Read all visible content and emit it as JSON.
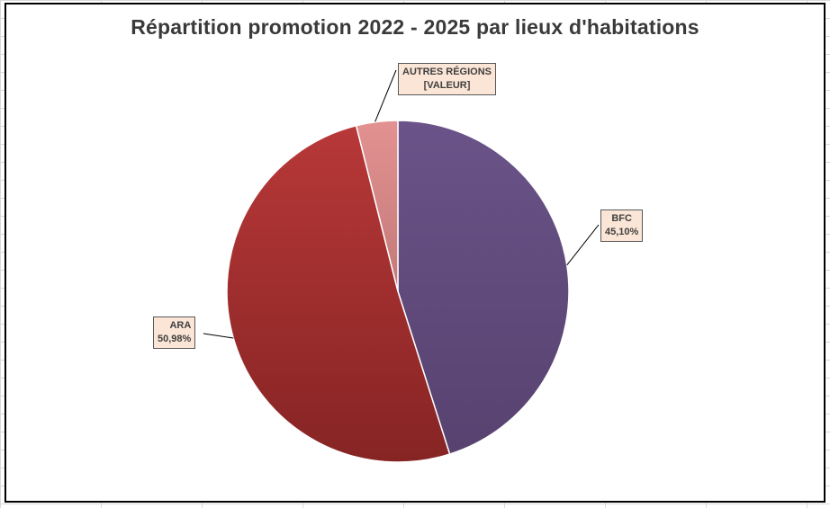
{
  "chart_data": {
    "type": "pie",
    "title": "Répartition promotion 2022 - 2025 par lieux d'habitations",
    "slices": [
      {
        "label": "BFC",
        "value": 45.1,
        "value_text": "45,10%",
        "color": "#604a7b"
      },
      {
        "label": "ARA",
        "value": 50.98,
        "value_text": "50,98%",
        "color": "#a33030"
      },
      {
        "label": "AUTRES RÉGIONS",
        "value": 3.92,
        "value_text": "[VALEUR]",
        "color": "#d98887"
      }
    ],
    "start_angle": "12 o'clock",
    "direction": "clockwise",
    "legend": "none",
    "label_style": {
      "background": "#fbe5d6",
      "border": "#595959"
    }
  }
}
